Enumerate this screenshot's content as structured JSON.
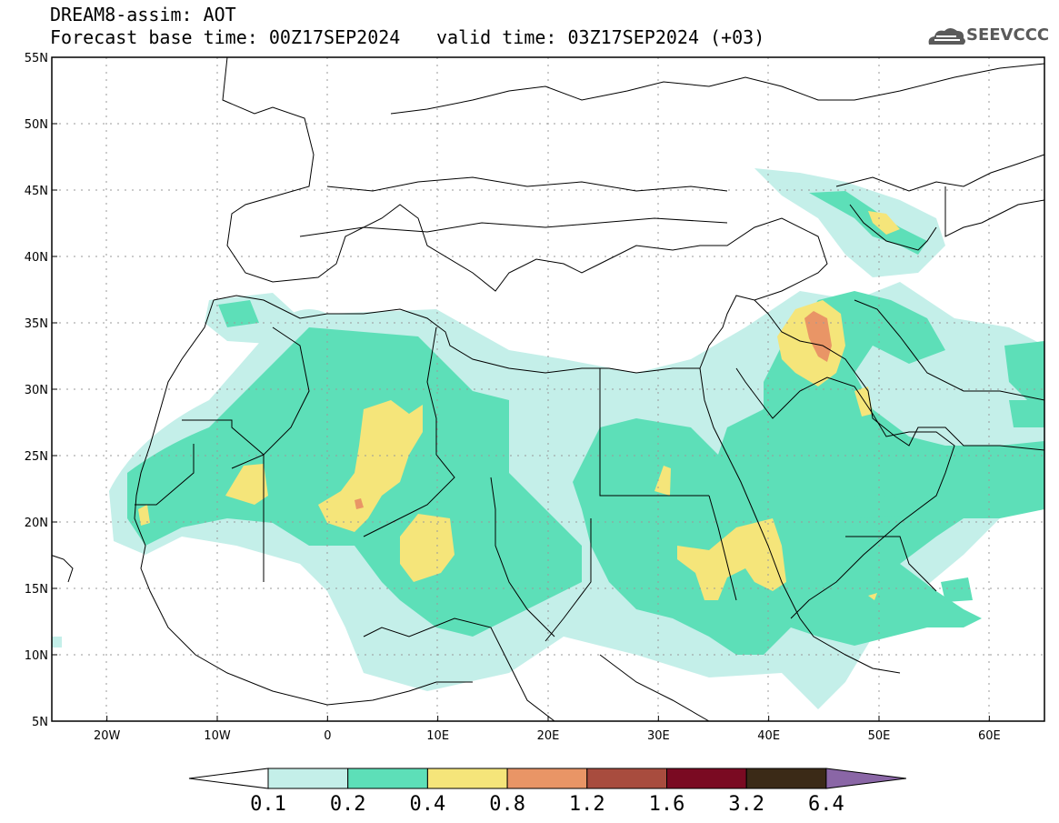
{
  "header": {
    "title": "DREAM8-assim: AOT",
    "base_time": "Forecast base time: 00Z17SEP2024",
    "valid_time": "valid time: 03Z17SEP2024 (+03)",
    "logo_text": "SEEVCCC"
  },
  "map": {
    "lon_range": [
      -25,
      65
    ],
    "lat_range": [
      5,
      55
    ],
    "lat_ticks": [
      "55N",
      "50N",
      "45N",
      "40N",
      "35N",
      "30N",
      "25N",
      "20N",
      "15N",
      "10N",
      "5N"
    ],
    "lon_ticks": [
      "20W",
      "10W",
      "0",
      "10E",
      "20E",
      "30E",
      "40E",
      "50E",
      "60E"
    ],
    "grid": true
  },
  "colorbar": {
    "levels": [
      "0.1",
      "0.2",
      "0.4",
      "0.8",
      "1.2",
      "1.6",
      "3.2",
      "6.4"
    ],
    "colors": [
      "#c4efe9",
      "#5ddfb8",
      "#f5e57a",
      "#e99566",
      "#a84c3e",
      "#7a0a22",
      "#3b2a17",
      "#8a66a6"
    ],
    "under_color": "#ffffff"
  },
  "colors": {
    "c01": "#c4efe9",
    "c02": "#5ddfb8",
    "c04": "#f5e57a",
    "c08": "#e99566"
  }
}
